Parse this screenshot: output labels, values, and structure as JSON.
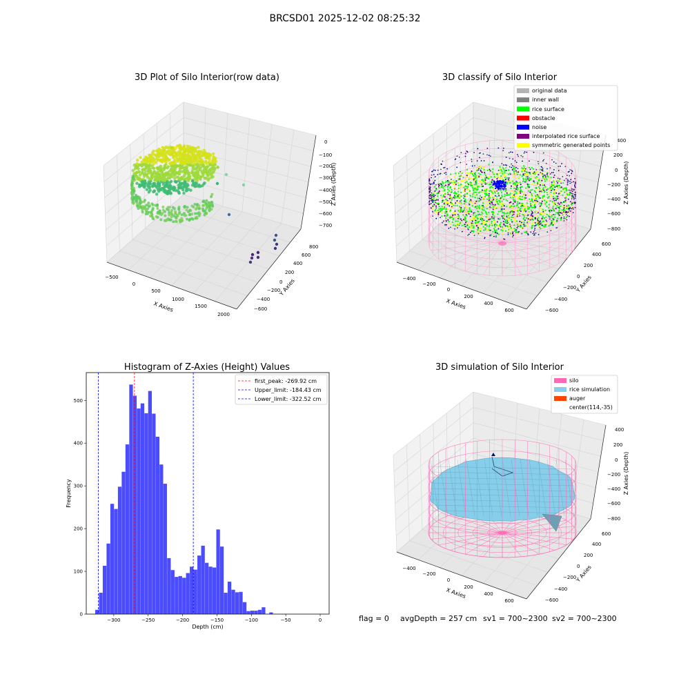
{
  "suptitle": "BRCSD01 2025-12-02 08:25:32",
  "panel_raw": {
    "title": "3D Plot of Silo Interior(row data)",
    "xlabel": "X Axies",
    "ylabel": "Y Axies",
    "zlabel": "Z Axies (Depth)",
    "x_ticks": [
      "−500",
      "0",
      "500",
      "1000",
      "1500",
      "2000"
    ],
    "y_ticks": [
      "−600",
      "−400",
      "−200",
      "0",
      "200",
      "400",
      "600",
      "800"
    ],
    "z_ticks": [
      "0",
      "−100",
      "−200",
      "−300",
      "−400",
      "−500",
      "−600",
      "−700"
    ]
  },
  "panel_classify": {
    "title": "3D classify of Silo Interior",
    "xlabel": "X Axies",
    "ylabel": "Y Axies",
    "zlabel": "Z Axies (Depth)",
    "x_ticks": [
      "−400",
      "−200",
      "0",
      "200",
      "400",
      "600"
    ],
    "y_ticks": [
      "−600",
      "−400",
      "−200",
      "0",
      "200",
      "400",
      "600"
    ],
    "z_ticks": [
      "400",
      "200",
      "0",
      "−200",
      "−400",
      "−600",
      "−800"
    ],
    "legend": [
      {
        "label": "original data",
        "color": "#b4b4b4"
      },
      {
        "label": "inner wall",
        "color": "#808080"
      },
      {
        "label": "rice surface",
        "color": "#00ff00"
      },
      {
        "label": "obstacle",
        "color": "#ff0000"
      },
      {
        "label": "noise",
        "color": "#0000ff"
      },
      {
        "label": "interpolated rice surface",
        "color": "#800080"
      },
      {
        "label": "symmetric generated points",
        "color": "#ffff00"
      }
    ]
  },
  "panel_sim": {
    "title": "3D simulation of Silo Interior",
    "xlabel": "X Axies",
    "ylabel": "Y Axies",
    "zlabel": "Z Axies (Depth)",
    "x_ticks": [
      "−400",
      "−200",
      "0",
      "200",
      "400",
      "600"
    ],
    "y_ticks": [
      "−600",
      "−400",
      "−200",
      "0",
      "200",
      "400",
      "600"
    ],
    "z_ticks": [
      "400",
      "200",
      "0",
      "−200",
      "−400",
      "−600",
      "−800"
    ],
    "legend": [
      {
        "label": "silo",
        "color": "#ff69b4"
      },
      {
        "label": "rice simulation",
        "color": "#87ceeb"
      },
      {
        "label": "auger",
        "color": "#ff4500"
      },
      {
        "label": "center(114,-35)",
        "color": ""
      }
    ]
  },
  "footer": {
    "flag": "flag = 0",
    "avg": "avgDepth = 257 cm",
    "sv1": "sv1 = 700~2300",
    "sv2": "sv2 = 700~2300"
  },
  "chart_data": [
    {
      "type": "histogram",
      "title": "Histogram of Z-Axies (Height) Values",
      "xlabel": "Depth (cm)",
      "ylabel": "Frequency",
      "xlim": [
        -340,
        13
      ],
      "ylim": [
        0,
        565
      ],
      "x_ticks": [
        -300,
        -250,
        -200,
        -150,
        -100,
        -50,
        0
      ],
      "y_ticks": [
        0,
        100,
        200,
        300,
        400,
        500
      ],
      "bin_width": 5.5,
      "bin_start": -327,
      "color": "#0000ff",
      "counts": [
        10,
        50,
        113,
        165,
        258,
        246,
        298,
        333,
        397,
        537,
        511,
        481,
        493,
        470,
        522,
        469,
        415,
        350,
        305,
        131,
        103,
        87,
        89,
        85,
        96,
        111,
        104,
        137,
        160,
        120,
        111,
        109,
        198,
        158,
        50,
        76,
        57,
        51,
        52,
        28,
        7,
        8,
        8,
        10,
        16,
        0,
        4
      ],
      "vlines": [
        {
          "label": "first_peak: -269.92 cm",
          "x": -269.92,
          "color": "#ff0000"
        },
        {
          "label": "Upper_limit: -184.43 cm",
          "x": -184.43,
          "color": "#0000ff"
        },
        {
          "label": "Lower_limit: -322.52 cm",
          "x": -322.52,
          "color": "#0000ff"
        }
      ]
    }
  ]
}
